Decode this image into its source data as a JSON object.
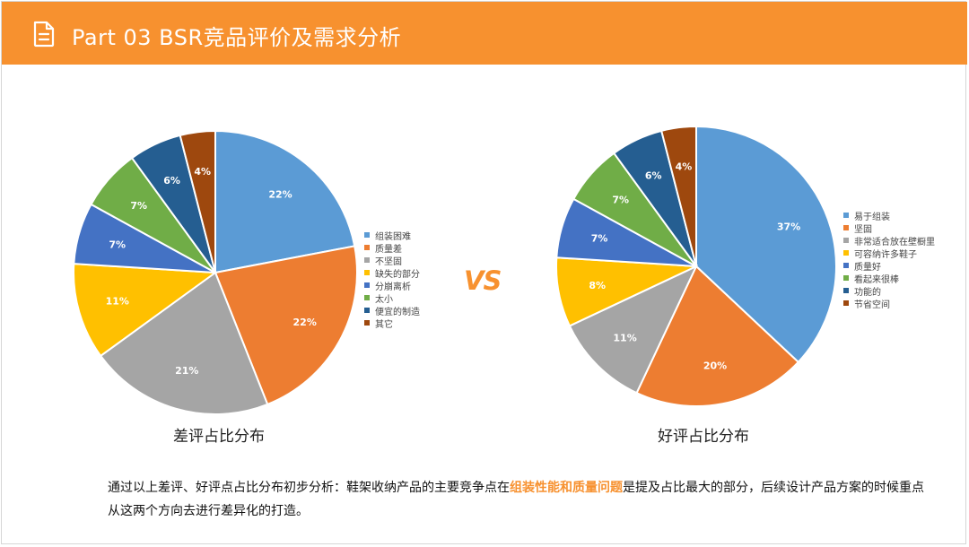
{
  "header": {
    "title": "Part 03  BSR竞品评价及需求分析"
  },
  "vs_label": "VS",
  "chart_data": [
    {
      "type": "pie",
      "title": "差评占比分布",
      "categories": [
        "组装困难",
        "质量差",
        "不坚固",
        "缺失的部分",
        "分崩离析",
        "太小",
        "便宜的制造",
        "其它"
      ],
      "values": [
        22,
        22,
        21,
        11,
        7,
        7,
        6,
        4
      ],
      "labels": [
        "22%",
        "22%",
        "21%",
        "11%",
        "7%",
        "7%",
        "6%",
        "4%"
      ],
      "colors": [
        "#5b9bd5",
        "#ed7d31",
        "#a5a5a5",
        "#ffc000",
        "#4472c4",
        "#70ad47",
        "#255e91",
        "#9e480e"
      ],
      "legend_position": "right"
    },
    {
      "type": "pie",
      "title": "好评占比分布",
      "categories": [
        "易于组装",
        "坚固",
        "非常适合放在壁橱里",
        "可容纳许多鞋子",
        "质量好",
        "看起来很棒",
        "功能的",
        "节省空间"
      ],
      "values": [
        37,
        20,
        11,
        8,
        7,
        7,
        6,
        4
      ],
      "labels": [
        "37%",
        "20%",
        "11%",
        "8%",
        "7%",
        "7%",
        "6%",
        "4%"
      ],
      "colors": [
        "#5b9bd5",
        "#ed7d31",
        "#a5a5a5",
        "#ffc000",
        "#4472c4",
        "#70ad47",
        "#255e91",
        "#9e480e"
      ],
      "legend_position": "right"
    }
  ],
  "summary": {
    "before": "通过以上差评、好评点占比分布初步分析：鞋架收纳产品的主要竞争点在",
    "highlight": "组装性能和质量问题",
    "after": "是提及占比最大的部分，后续设计产品方案的时候重点从这两个方向去进行差异化的打造。"
  }
}
